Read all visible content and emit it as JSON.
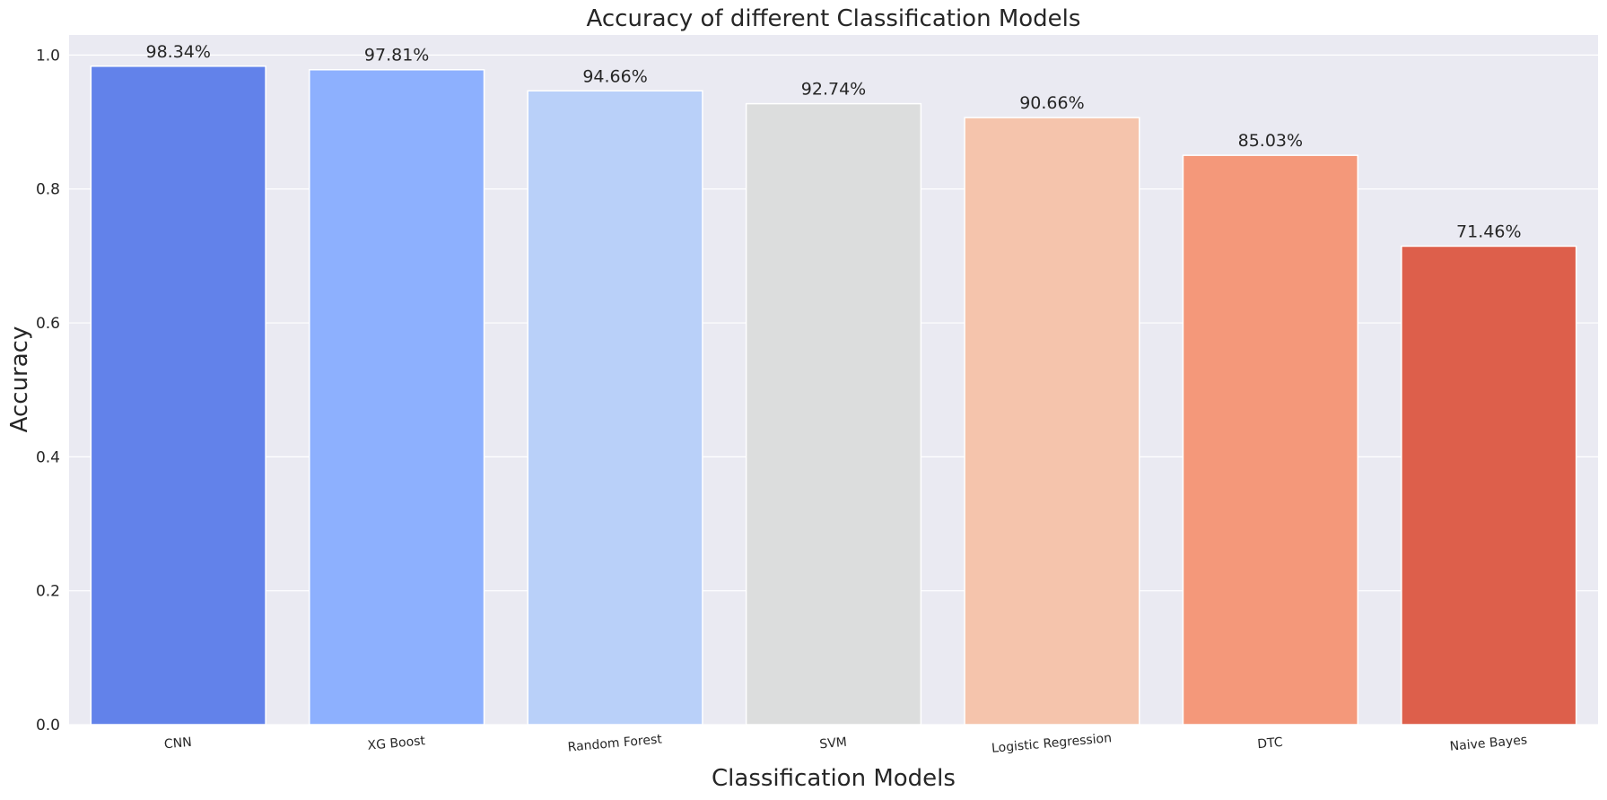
{
  "chart_data": {
    "type": "bar",
    "title": "Accuracy of different Classification Models",
    "xlabel": "Classification Models",
    "ylabel": "Accuracy",
    "categories": [
      "CNN",
      "XG Boost",
      "Random Forest",
      "SVM",
      "Logistic Regression",
      "DTC",
      "Naive Bayes"
    ],
    "values": [
      0.9834,
      0.9781,
      0.9466,
      0.9274,
      0.9066,
      0.8503,
      0.7146
    ],
    "data_labels": [
      "98.34%",
      "97.81%",
      "94.66%",
      "92.74%",
      "90.66%",
      "85.03%",
      "71.46%"
    ],
    "bar_colors": [
      "#6282ea",
      "#8db0fe",
      "#b9d0f9",
      "#dcdddd",
      "#f5c4ac",
      "#f4987a",
      "#dd5f4b"
    ],
    "ylim": [
      0,
      1.03
    ],
    "yticks": [
      0.0,
      0.2,
      0.4,
      0.6,
      0.8,
      1.0
    ],
    "ytick_labels": [
      "0.0",
      "0.2",
      "0.4",
      "0.6",
      "0.8",
      "1.0"
    ],
    "grid": true,
    "background_color": "#eaeaf2",
    "grid_color": "#ffffff"
  }
}
